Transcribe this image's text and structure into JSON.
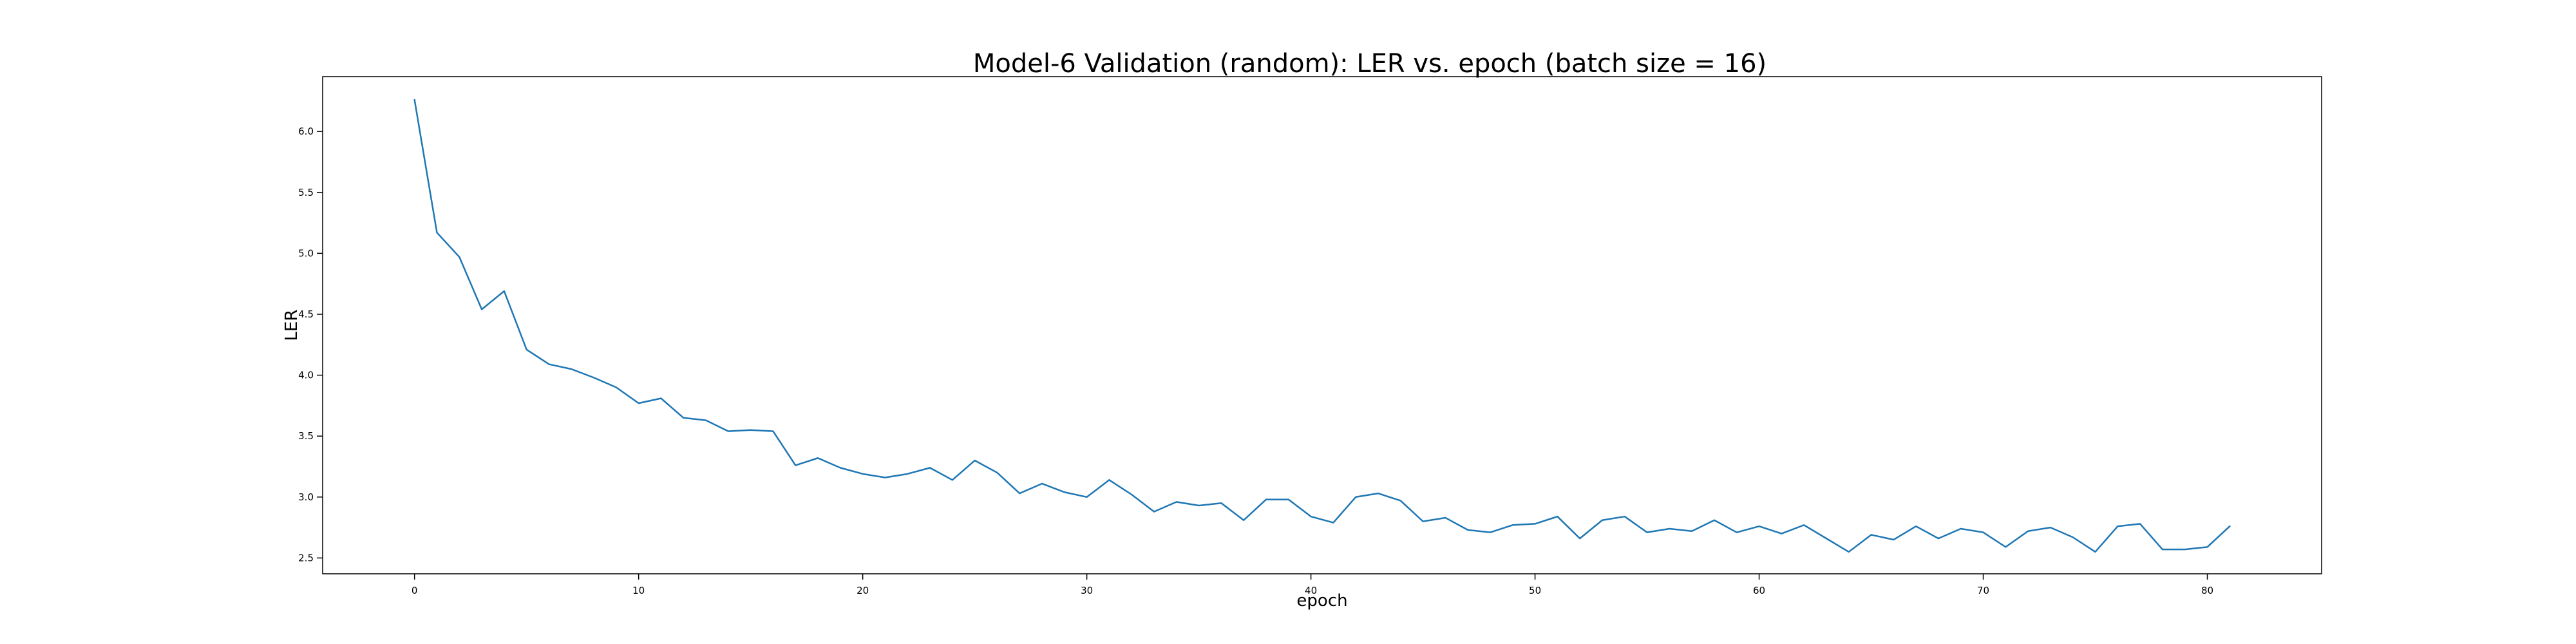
{
  "chart_data": {
    "type": "line",
    "title": "Model-6 Validation (random): LER vs. epoch (batch size = 16)",
    "xlabel": "epoch",
    "ylabel": "LER",
    "xlim": [
      -4.1,
      85.1
    ],
    "ylim": [
      2.37,
      6.45
    ],
    "xticks": [
      0,
      10,
      20,
      30,
      40,
      50,
      60,
      70,
      80
    ],
    "yticks": [
      2.5,
      3.0,
      3.5,
      4.0,
      4.5,
      5.0,
      5.5,
      6.0
    ],
    "grid": false,
    "legend": "none",
    "series_color": "#1f77b4",
    "series": [
      {
        "x": [
          0,
          1,
          2,
          3,
          4,
          5,
          6,
          7,
          8,
          9,
          10,
          11,
          12,
          13,
          14,
          15,
          16,
          17,
          18,
          19,
          20,
          21,
          22,
          23,
          24,
          25,
          26,
          27,
          28,
          29,
          30,
          31,
          32,
          33,
          34,
          35,
          36,
          37,
          38,
          39,
          40,
          41,
          42,
          43,
          44,
          45,
          46,
          47,
          48,
          49,
          50,
          51,
          52,
          53,
          54,
          55,
          56,
          57,
          58,
          59,
          60,
          61,
          62,
          63,
          64,
          65,
          66,
          67,
          68,
          69,
          70,
          71,
          72,
          73,
          74,
          75,
          76,
          77,
          78,
          79,
          80,
          81
        ],
        "values": [
          6.26,
          5.17,
          4.97,
          4.54,
          4.69,
          4.21,
          4.09,
          4.05,
          3.98,
          3.9,
          3.77,
          3.81,
          3.65,
          3.63,
          3.54,
          3.55,
          3.54,
          3.26,
          3.32,
          3.24,
          3.19,
          3.16,
          3.19,
          3.24,
          3.14,
          3.3,
          3.2,
          3.03,
          3.11,
          3.04,
          3.0,
          3.14,
          3.02,
          2.88,
          2.96,
          2.93,
          2.95,
          2.81,
          2.98,
          2.98,
          2.84,
          2.79,
          3.0,
          3.03,
          2.97,
          2.8,
          2.83,
          2.73,
          2.71,
          2.77,
          2.78,
          2.84,
          2.66,
          2.81,
          2.84,
          2.71,
          2.74,
          2.72,
          2.81,
          2.71,
          2.76,
          2.7,
          2.77,
          2.66,
          2.55,
          2.69,
          2.65,
          2.76,
          2.66,
          2.74,
          2.71,
          2.59,
          2.72,
          2.75,
          2.67,
          2.55,
          2.76,
          2.78,
          2.57,
          2.57,
          2.59,
          2.76
        ]
      }
    ]
  }
}
